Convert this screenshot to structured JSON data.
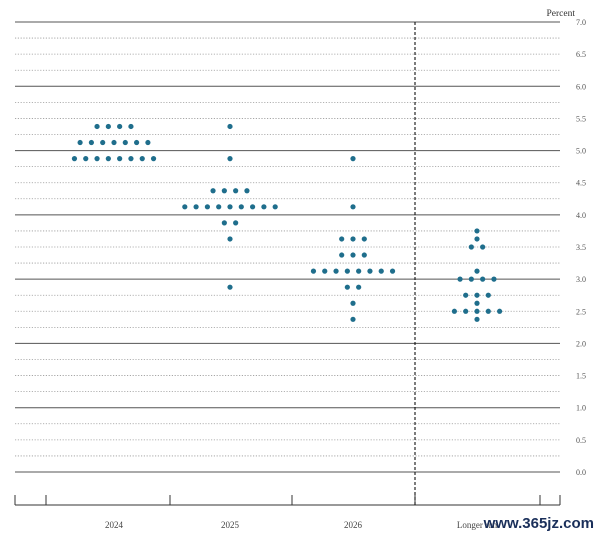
{
  "chart_data": {
    "type": "scatter",
    "title": "",
    "unit_label": "Percent",
    "ylim": [
      0,
      7
    ],
    "y_ticks": [
      "0.0",
      "0.5",
      "1.0",
      "1.5",
      "2.0",
      "2.5",
      "3.0",
      "3.5",
      "4.0",
      "4.5",
      "5.0",
      "5.5",
      "6.0",
      "6.5",
      "7.0"
    ],
    "categories": [
      "2024",
      "2025",
      "2026",
      "Longer run"
    ],
    "grid": true,
    "dot_color": "#1f6e8c",
    "series": [
      {
        "values": [
          {
            "y": 5.375,
            "count": 4
          },
          {
            "y": 5.125,
            "count": 7
          },
          {
            "y": 4.875,
            "count": 8
          }
        ]
      },
      {
        "values": [
          {
            "y": 5.375,
            "count": 1
          },
          {
            "y": 4.875,
            "count": 1
          },
          {
            "y": 4.375,
            "count": 4
          },
          {
            "y": 4.125,
            "count": 9
          },
          {
            "y": 3.875,
            "count": 2
          },
          {
            "y": 3.625,
            "count": 1
          },
          {
            "y": 2.875,
            "count": 1
          }
        ]
      },
      {
        "values": [
          {
            "y": 4.875,
            "count": 1
          },
          {
            "y": 4.125,
            "count": 1
          },
          {
            "y": 3.625,
            "count": 3
          },
          {
            "y": 3.375,
            "count": 3
          },
          {
            "y": 3.125,
            "count": 8
          },
          {
            "y": 2.875,
            "count": 2
          },
          {
            "y": 2.625,
            "count": 1
          },
          {
            "y": 2.375,
            "count": 1
          }
        ]
      },
      {
        "values": [
          {
            "y": 3.75,
            "count": 1
          },
          {
            "y": 3.625,
            "count": 1
          },
          {
            "y": 3.5,
            "count": 2
          },
          {
            "y": 3.125,
            "count": 1
          },
          {
            "y": 3.0,
            "count": 4
          },
          {
            "y": 2.75,
            "count": 3
          },
          {
            "y": 2.625,
            "count": 1
          },
          {
            "y": 2.5,
            "count": 5
          },
          {
            "y": 2.375,
            "count": 1
          }
        ]
      }
    ]
  },
  "watermark": {
    "text": "www.365jz.com",
    "color": "#1a2f5a"
  }
}
